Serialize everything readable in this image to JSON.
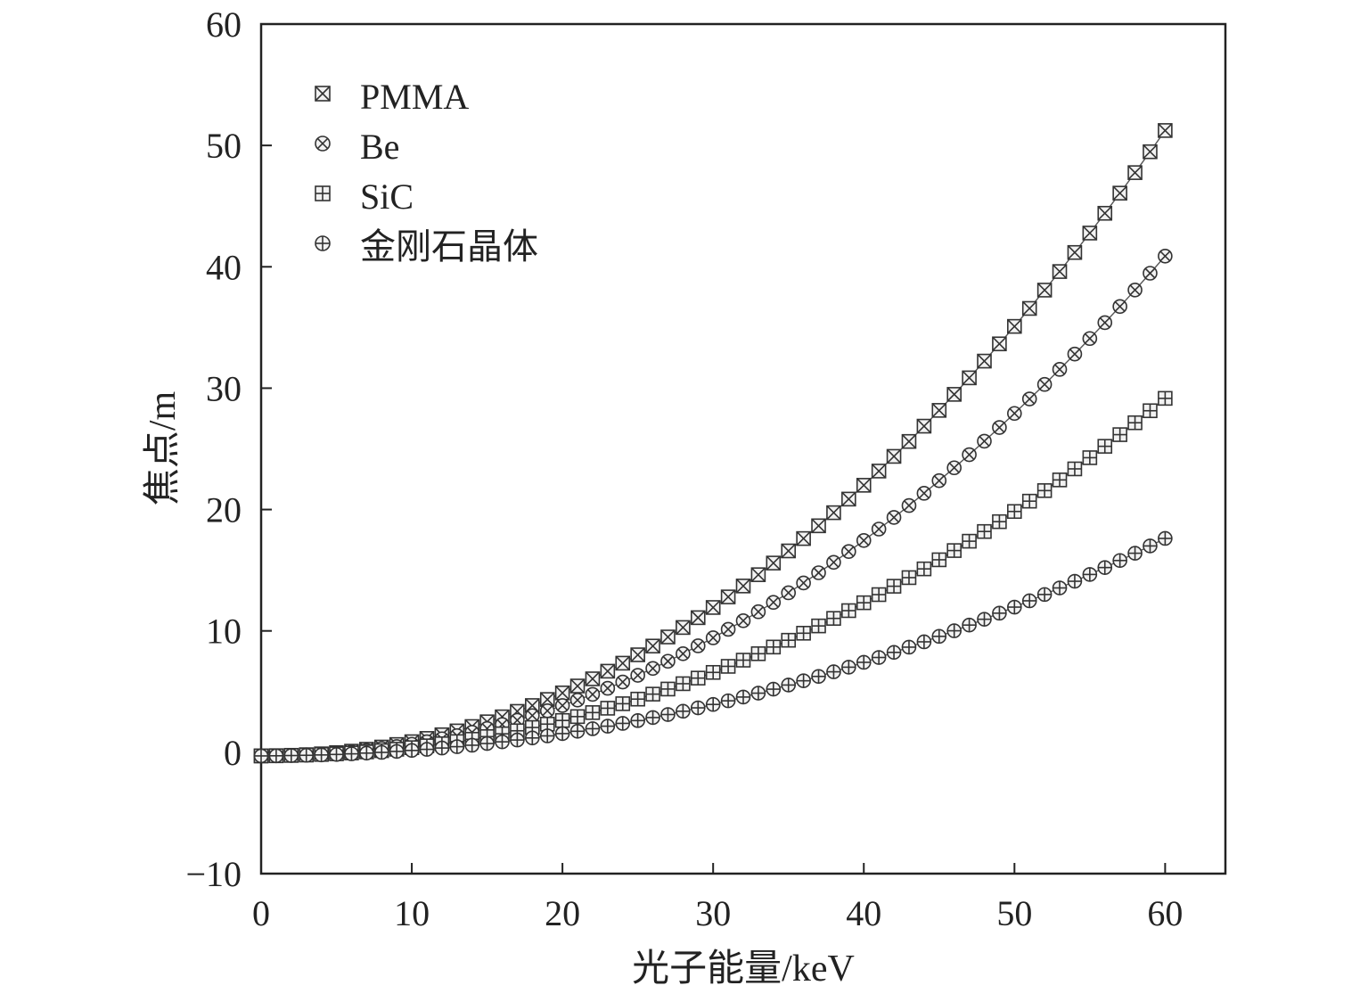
{
  "chart_data": {
    "type": "scatter",
    "title": "",
    "xlabel": "光子能量/keV",
    "ylabel": "焦点/m",
    "xlim": [
      0,
      64
    ],
    "ylim": [
      -10,
      60
    ],
    "xticks": [
      0,
      10,
      20,
      30,
      40,
      50,
      60
    ],
    "yticks": [
      -10,
      0,
      10,
      20,
      30,
      40,
      50,
      60
    ],
    "xtick_labels": [
      "0",
      "10",
      "20",
      "30",
      "40",
      "50",
      "60"
    ],
    "ytick_labels": [
      "−10",
      "0",
      "10",
      "20",
      "30",
      "40",
      "50",
      "60"
    ],
    "grid": false,
    "legend_position": "top-left",
    "x": [
      0,
      1,
      2,
      3,
      4,
      5,
      6,
      7,
      8,
      9,
      10,
      11,
      12,
      13,
      14,
      15,
      16,
      17,
      18,
      19,
      20,
      21,
      22,
      23,
      24,
      25,
      26,
      27,
      28,
      29,
      30,
      31,
      32,
      33,
      34,
      35,
      36,
      37,
      38,
      39,
      40,
      41,
      42,
      43,
      44,
      45,
      46,
      47,
      48,
      49,
      50,
      51,
      52,
      53,
      54,
      55,
      56,
      57,
      58,
      59,
      60
    ],
    "series": [
      {
        "name": "PMMA",
        "marker": "square-x",
        "values": [
          -0.3,
          -0.28,
          -0.25,
          -0.2,
          -0.13,
          -0.03,
          0.09,
          0.25,
          0.43,
          0.64,
          0.87,
          1.14,
          1.44,
          1.76,
          2.12,
          2.51,
          2.92,
          3.37,
          3.85,
          4.35,
          4.89,
          5.46,
          6.05,
          6.68,
          7.34,
          8.03,
          8.75,
          9.5,
          10.28,
          11.09,
          11.93,
          12.8,
          13.7,
          14.63,
          15.59,
          16.59,
          17.61,
          18.66,
          19.74,
          20.86,
          22.0,
          23.17,
          24.38,
          25.61,
          26.87,
          28.17,
          29.49,
          30.85,
          32.23,
          33.65,
          35.09,
          36.57,
          38.08,
          39.61,
          41.18,
          42.78,
          44.41,
          46.07,
          47.76,
          49.48,
          51.23
        ]
      },
      {
        "name": "Be",
        "marker": "circle-x",
        "values": [
          -0.3,
          -0.29,
          -0.25,
          -0.21,
          -0.15,
          -0.07,
          0.03,
          0.16,
          0.31,
          0.47,
          0.66,
          0.87,
          1.11,
          1.37,
          1.65,
          1.96,
          2.29,
          2.64,
          3.02,
          3.42,
          3.85,
          4.3,
          4.77,
          5.27,
          5.79,
          6.34,
          6.91,
          7.5,
          8.12,
          8.77,
          9.43,
          10.13,
          10.84,
          11.58,
          12.35,
          13.14,
          13.95,
          14.79,
          15.65,
          16.54,
          17.45,
          18.39,
          19.35,
          20.33,
          21.34,
          22.38,
          23.44,
          24.52,
          25.63,
          26.76,
          27.92,
          29.11,
          30.31,
          31.55,
          32.81,
          34.09,
          35.4,
          36.73,
          38.09,
          39.47,
          40.88
        ]
      },
      {
        "name": "SiC",
        "marker": "square-plus",
        "values": [
          -0.3,
          -0.29,
          -0.26,
          -0.23,
          -0.18,
          -0.13,
          -0.06,
          0.03,
          0.13,
          0.25,
          0.38,
          0.53,
          0.7,
          0.88,
          1.07,
          1.29,
          1.52,
          1.77,
          2.04,
          2.32,
          2.62,
          2.94,
          3.27,
          3.63,
          4.0,
          4.38,
          4.79,
          5.21,
          5.65,
          6.11,
          6.58,
          7.08,
          7.59,
          8.12,
          8.67,
          9.23,
          9.81,
          10.41,
          11.03,
          11.67,
          12.32,
          12.99,
          13.68,
          14.39,
          15.11,
          15.86,
          16.62,
          17.39,
          18.19,
          19.0,
          19.84,
          20.69,
          21.56,
          22.44,
          23.35,
          24.27,
          25.21,
          26.17,
          27.15,
          28.14,
          29.16
        ]
      },
      {
        "name": "金刚石晶体",
        "marker": "circle-plus",
        "values": [
          -0.3,
          -0.29,
          -0.27,
          -0.25,
          -0.22,
          -0.18,
          -0.13,
          -0.07,
          -0.01,
          0.07,
          0.15,
          0.24,
          0.35,
          0.46,
          0.58,
          0.72,
          0.86,
          1.01,
          1.18,
          1.35,
          1.54,
          1.73,
          1.94,
          2.15,
          2.38,
          2.61,
          2.86,
          3.11,
          3.38,
          3.66,
          3.94,
          4.24,
          4.55,
          4.87,
          5.2,
          5.54,
          5.89,
          6.25,
          6.63,
          7.01,
          7.41,
          7.81,
          8.23,
          8.66,
          9.1,
          9.55,
          10.01,
          10.48,
          10.96,
          11.46,
          11.96,
          12.48,
          13.0,
          13.54,
          14.09,
          14.65,
          15.22,
          15.8,
          16.4,
          17.0,
          17.62
        ]
      }
    ]
  }
}
